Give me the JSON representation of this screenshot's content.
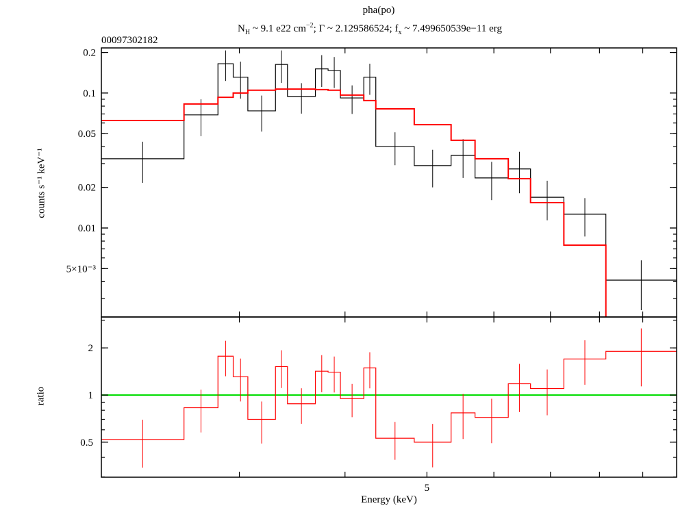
{
  "title": "pha(po)",
  "subtitle": {
    "nh_symbol": "N",
    "nh_sub": "H",
    "nh_text": " ~ 9.1 e22 cm",
    "nh_sup": "−2",
    "gamma_text": ";  Γ ~ 2.129586524;  f",
    "fx_sub": "x",
    "fx_text": " ~ 7.499650539e−11 erg"
  },
  "obsid": "00097302182",
  "chart_data": [
    {
      "type": "line",
      "panel": "spectrum",
      "xlabel": "",
      "ylabel": "counts s⁻¹ keV⁻¹",
      "xscale": "log",
      "yscale": "log",
      "xlim": [
        2.06,
        9.87
      ],
      "ylim": [
        0.00219,
        0.216
      ],
      "yticks": [
        {
          "value": 0.2,
          "label": "0.2"
        },
        {
          "value": 0.1,
          "label": "0.1"
        },
        {
          "value": 0.05,
          "label": "0.05"
        },
        {
          "value": 0.02,
          "label": "0.02"
        },
        {
          "value": 0.01,
          "label": "0.01"
        },
        {
          "value": 0.005,
          "label": "5×10⁻³"
        }
      ],
      "bin_edges_keV": [
        2.06,
        2.58,
        2.83,
        2.95,
        3.07,
        3.31,
        3.42,
        3.69,
        3.82,
        3.95,
        4.21,
        4.35,
        4.83,
        5.34,
        5.7,
        6.24,
        6.63,
        7.26,
        8.14,
        9.87
      ],
      "series": [
        {
          "style": "data",
          "color": "#000000",
          "values": [
            0.0326,
            0.0689,
            0.165,
            0.131,
            0.0738,
            0.163,
            0.0944,
            0.151,
            0.147,
            0.092,
            0.131,
            0.0402,
            0.029,
            0.0345,
            0.0235,
            0.0274,
            0.0169,
            0.01265,
            0.00411
          ],
          "errors": [
            0.011,
            0.021,
            0.042,
            0.04,
            0.022,
            0.044,
            0.024,
            0.04,
            0.038,
            0.022,
            0.034,
            0.011,
            0.009,
            0.011,
            0.0074,
            0.0093,
            0.0055,
            0.004,
            0.00165
          ]
        },
        {
          "style": "model",
          "color": "#ff0000",
          "values": [
            0.0626,
            0.083,
            0.093,
            0.1,
            0.105,
            0.107,
            0.107,
            0.106,
            0.105,
            0.0966,
            0.088,
            0.0764,
            0.0583,
            0.0447,
            0.0326,
            0.0232,
            0.0154,
            0.00746,
            0.00216
          ]
        }
      ]
    },
    {
      "type": "line",
      "panel": "ratio",
      "xlabel": "Energy (keV)",
      "ylabel": "ratio",
      "xscale": "log",
      "yscale": "log",
      "xlim": [
        2.06,
        9.87
      ],
      "ylim": [
        0.299,
        3.15
      ],
      "xticks": [
        {
          "value": 3,
          "label": ""
        },
        {
          "value": 4,
          "label": ""
        },
        {
          "value": 5,
          "label": "5"
        },
        {
          "value": 6,
          "label": ""
        },
        {
          "value": 7,
          "label": ""
        },
        {
          "value": 8,
          "label": ""
        },
        {
          "value": 9,
          "label": ""
        }
      ],
      "yticks": [
        {
          "value": 2,
          "label": "2"
        },
        {
          "value": 1,
          "label": "1"
        },
        {
          "value": 0.5,
          "label": "0.5"
        }
      ],
      "series_color": "#ff0000",
      "reference_line": {
        "value": 1,
        "color": "#00dd00"
      },
      "values": [
        0.52,
        0.83,
        1.77,
        1.31,
        0.7,
        1.52,
        0.88,
        1.42,
        1.4,
        0.95,
        1.49,
        0.53,
        0.5,
        0.77,
        0.72,
        1.18,
        1.1,
        1.7,
        1.9
      ]
    }
  ]
}
